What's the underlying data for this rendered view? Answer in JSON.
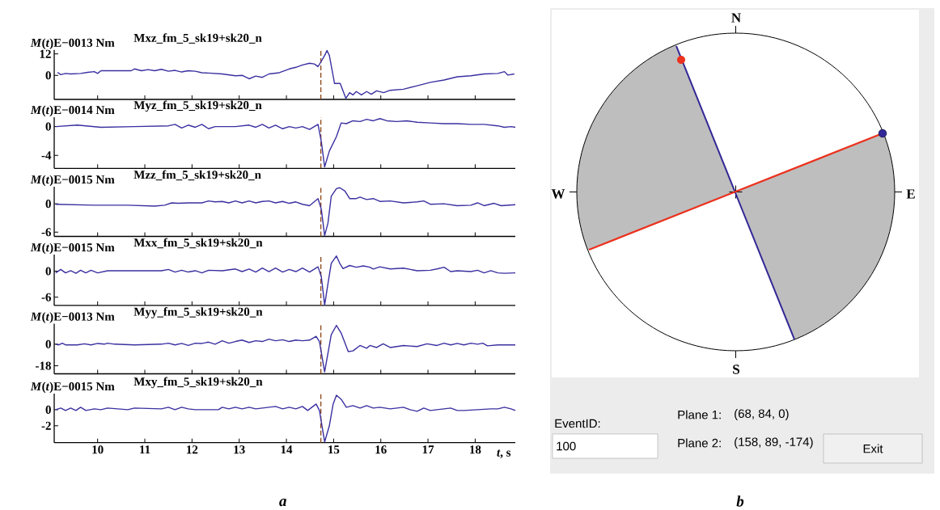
{
  "chart_data": [
    {
      "type": "line",
      "title": "Mxz_fm_5_sk19+sk20_n",
      "ylabel": "*M*(*t*)E−0013 Nm",
      "color": "#3a30a0",
      "xlim": [
        9.08,
        18.85
      ],
      "ylim": [
        -13.4,
        14.2
      ],
      "xticks": [
        10,
        11,
        12,
        13,
        14,
        15,
        16,
        17,
        18
      ],
      "yticks": [
        0,
        12
      ],
      "tick_labels": "y",
      "ref_lines": [
        {
          "axis": "x",
          "value": 14.73,
          "color": "#8b4513",
          "line_style": "dashed"
        }
      ],
      "x": [
        9.15,
        9.22,
        9.32,
        9.43,
        9.64,
        9.79,
        9.93,
        10.0,
        10.07,
        10.21,
        10.71,
        10.78,
        10.93,
        11.07,
        11.21,
        11.35,
        11.5,
        11.64,
        11.78,
        11.92,
        12.07,
        12.21,
        12.35,
        12.64,
        12.92,
        13.07,
        13.21,
        13.35,
        13.49,
        13.63,
        13.85,
        14.06,
        14.2,
        14.34,
        14.49,
        14.59,
        14.67,
        14.74,
        14.81,
        14.86,
        14.91,
        15.02,
        15.14,
        15.26,
        15.34,
        15.41,
        15.48,
        15.59,
        15.7,
        15.8,
        15.91,
        16.06,
        16.2,
        16.48,
        16.77,
        17.05,
        17.34,
        17.62,
        17.91,
        18.19,
        18.48,
        18.62,
        18.69,
        18.83
      ],
      "values": [
        1.7,
        0.4,
        1.1,
        0.8,
        1.1,
        1.7,
        2.1,
        1.1,
        2.6,
        2.6,
        2.6,
        3.6,
        2.6,
        3.2,
        2.6,
        3.4,
        2.3,
        2.8,
        1.9,
        2.6,
        2.3,
        1.5,
        1.3,
        0.8,
        -0.2,
        0.0,
        -1.9,
        -0.4,
        -1.1,
        0.8,
        1.5,
        3.6,
        4.5,
        5.8,
        6.8,
        6.4,
        4.9,
        7.9,
        11.1,
        13.9,
        11.1,
        -4.5,
        -4.5,
        -12.8,
        -9.6,
        -10.9,
        -9.0,
        -10.9,
        -9.0,
        -10.5,
        -8.6,
        -9.6,
        -8.3,
        -7.7,
        -5.8,
        -3.9,
        -2.6,
        -0.8,
        -0.2,
        0.8,
        1.1,
        2.1,
        0.2,
        0.8
      ]
    },
    {
      "type": "line",
      "title": "Myz_fm_5_sk19+sk20_n",
      "ylabel": "*M*(*t*)E−0014 Nm",
      "color": "#3a30a0",
      "xlim": [
        9.08,
        18.85
      ],
      "ylim": [
        -5.8,
        1.3
      ],
      "xticks": [
        10,
        11,
        12,
        13,
        14,
        15,
        16,
        17,
        18
      ],
      "yticks": [
        -4,
        0
      ],
      "tick_labels": "y",
      "ref_lines": [
        {
          "axis": "x",
          "value": 14.73,
          "color": "#8b4513",
          "line_style": "dashed"
        }
      ],
      "x": [
        9.11,
        9.57,
        10.07,
        10.78,
        11.5,
        11.64,
        11.78,
        11.92,
        12.07,
        12.21,
        12.35,
        12.49,
        12.92,
        13.21,
        13.35,
        13.49,
        13.63,
        13.77,
        13.92,
        14.06,
        14.2,
        14.34,
        14.49,
        14.67,
        14.74,
        14.81,
        14.91,
        15.06,
        15.16,
        15.27,
        15.41,
        15.56,
        15.7,
        15.84,
        15.98,
        16.13,
        16.34,
        16.55,
        16.77,
        17.05,
        17.34,
        17.62,
        17.91,
        18.19,
        18.48,
        18.62,
        18.76,
        18.85
      ],
      "values": [
        0.0,
        0.2,
        -0.1,
        0.0,
        0.1,
        0.3,
        -0.2,
        0.2,
        -0.1,
        0.3,
        -0.3,
        0.0,
        0.0,
        0.2,
        -0.1,
        0.3,
        -0.2,
        0.2,
        -0.3,
        0.0,
        -0.2,
        0.0,
        -0.4,
        0.3,
        -2.1,
        -5.6,
        -3.4,
        -1.4,
        0.5,
        0.4,
        0.8,
        0.7,
        1.0,
        0.8,
        1.1,
        0.8,
        0.7,
        0.8,
        0.6,
        0.5,
        0.4,
        0.4,
        0.3,
        0.3,
        0.1,
        -0.1,
        0.0,
        -0.1
      ]
    },
    {
      "type": "line",
      "title": "Mzz_fm_5_sk19+sk20_n",
      "ylabel": "*M*(*t*)E−0015 Nm",
      "color": "#3a30a0",
      "xlim": [
        9.08,
        18.85
      ],
      "ylim": [
        -6.9,
        3.6
      ],
      "xticks": [
        10,
        11,
        12,
        13,
        14,
        15,
        16,
        17,
        18
      ],
      "yticks": [
        -6,
        0
      ],
      "tick_labels": "y",
      "ref_lines": [
        {
          "axis": "x",
          "value": 14.73,
          "color": "#8b4513",
          "line_style": "dashed"
        }
      ],
      "x": [
        9.11,
        9.93,
        10.64,
        11.21,
        11.42,
        11.57,
        11.71,
        11.92,
        12.21,
        12.35,
        12.49,
        12.64,
        12.78,
        12.92,
        13.06,
        13.21,
        13.35,
        13.49,
        13.63,
        13.77,
        13.92,
        14.06,
        14.2,
        14.34,
        14.49,
        14.67,
        14.74,
        14.81,
        14.88,
        14.95,
        15.06,
        15.13,
        15.24,
        15.34,
        15.48,
        15.56,
        15.7,
        15.84,
        15.98,
        16.2,
        16.48,
        16.77,
        16.91,
        17.05,
        17.34,
        17.62,
        17.91,
        18.05,
        18.19,
        18.4,
        18.55,
        18.85
      ],
      "values": [
        -0.1,
        -0.3,
        -0.3,
        -0.5,
        -0.3,
        0.2,
        0.1,
        0.2,
        0.2,
        0.6,
        0.4,
        0.5,
        0.2,
        0.6,
        0.2,
        0.6,
        0.2,
        0.5,
        0.6,
        0.2,
        0.5,
        0.1,
        0.4,
        -0.1,
        -0.4,
        1.1,
        -1.2,
        -6.7,
        -4.1,
        1.6,
        3.2,
        3.4,
        2.7,
        1.1,
        1.1,
        1.4,
        0.9,
        1.1,
        0.5,
        0.6,
        0.2,
        0.4,
        0.6,
        -0.1,
        0.0,
        -0.4,
        -0.3,
        0.2,
        -0.4,
        0.1,
        -0.4,
        -0.2
      ]
    },
    {
      "type": "line",
      "title": "Mxx_fm_5_sk19+sk20_n",
      "ylabel": "*M*(*t*)E−0015 Nm",
      "color": "#3a30a0",
      "xlim": [
        9.08,
        18.85
      ],
      "ylim": [
        -7.9,
        3.8
      ],
      "xticks": [
        10,
        11,
        12,
        13,
        14,
        15,
        16,
        17,
        18
      ],
      "yticks": [
        -6,
        0
      ],
      "tick_labels": "y",
      "ref_lines": [
        {
          "axis": "x",
          "value": 14.73,
          "color": "#8b4513",
          "line_style": "dashed"
        }
      ],
      "x": [
        9.11,
        9.22,
        9.32,
        9.43,
        9.54,
        9.64,
        9.75,
        9.86,
        10.0,
        10.21,
        10.78,
        11.35,
        11.5,
        11.64,
        11.78,
        11.92,
        12.07,
        12.21,
        12.35,
        12.64,
        12.92,
        13.06,
        13.21,
        13.35,
        13.49,
        13.63,
        13.77,
        13.92,
        14.06,
        14.2,
        14.34,
        14.49,
        14.67,
        14.74,
        14.81,
        14.88,
        14.95,
        15.06,
        15.13,
        15.2,
        15.34,
        15.48,
        15.63,
        15.77,
        15.84,
        15.98,
        16.2,
        16.48,
        16.77,
        17.05,
        17.19,
        17.34,
        17.48,
        17.62,
        17.91,
        18.05,
        18.19,
        18.33,
        18.48,
        18.62,
        18.85
      ],
      "values": [
        -0.4,
        0.4,
        -0.4,
        0.1,
        -0.5,
        0.2,
        -0.4,
        0.2,
        -0.4,
        0.1,
        0.1,
        0.1,
        0.4,
        -0.2,
        0.2,
        -0.2,
        0.1,
        -0.4,
        0.2,
        0.1,
        0.5,
        -0.1,
        0.5,
        -0.2,
        0.7,
        -0.1,
        0.7,
        -0.2,
        0.4,
        -0.1,
        0.7,
        -0.2,
        1.0,
        -1.3,
        -7.8,
        -2.9,
        1.8,
        3.5,
        1.8,
        0.6,
        1.3,
        0.9,
        1.2,
        0.9,
        0.5,
        1.0,
        0.5,
        0.7,
        0.1,
        0.2,
        0.5,
        0.9,
        -0.1,
        0.1,
        -0.1,
        0.2,
        -0.4,
        0.1,
        -0.4,
        -0.5,
        -0.4
      ]
    },
    {
      "type": "line",
      "title": "Myy_fm_5_sk19+sk20_n",
      "ylabel": "*M*(*t*)E−0013 Nm",
      "color": "#3a30a0",
      "xlim": [
        9.08,
        18.85
      ],
      "ylim": [
        -24.7,
        17
      ],
      "xticks": [
        10,
        11,
        12,
        13,
        14,
        15,
        16,
        17,
        18
      ],
      "yticks": [
        -18,
        0
      ],
      "tick_labels": "y",
      "ref_lines": [
        {
          "axis": "x",
          "value": 14.73,
          "color": "#8b4513",
          "line_style": "dashed"
        }
      ],
      "x": [
        9.11,
        9.18,
        9.25,
        9.32,
        9.57,
        9.72,
        9.86,
        10.0,
        10.14,
        10.21,
        10.36,
        10.78,
        11.35,
        11.5,
        11.64,
        11.78,
        11.92,
        12.07,
        12.21,
        12.35,
        12.49,
        12.64,
        12.78,
        12.92,
        13.06,
        13.21,
        13.35,
        13.49,
        13.63,
        13.77,
        13.92,
        14.06,
        14.2,
        14.34,
        14.49,
        14.63,
        14.7,
        14.81,
        14.95,
        15.06,
        15.16,
        15.31,
        15.41,
        15.56,
        15.7,
        15.77,
        15.91,
        16.05,
        16.2,
        16.48,
        16.77,
        16.98,
        17.19,
        17.34,
        17.48,
        17.62,
        17.76,
        17.91,
        18.05,
        18.16,
        18.26,
        18.48,
        18.85
      ],
      "values": [
        0.0,
        -0.6,
        0.8,
        -0.6,
        -0.6,
        0.3,
        -0.6,
        0.6,
        0.0,
        0.8,
        0.0,
        -0.6,
        0.0,
        0.8,
        -0.6,
        0.6,
        -1.1,
        0.8,
        0.6,
        1.7,
        0.0,
        2.8,
        0.8,
        2.2,
        3.4,
        1.4,
        2.8,
        2.2,
        4.2,
        2.8,
        3.7,
        2.2,
        3.4,
        2.8,
        3.4,
        6.5,
        2.2,
        -23.1,
        7.9,
        15.7,
        9.3,
        -6.2,
        -5.6,
        -1.1,
        -3.4,
        -1.1,
        -2.8,
        0.3,
        -2.8,
        -1.1,
        -2.0,
        0.3,
        -1.1,
        0.8,
        -0.6,
        0.6,
        -0.6,
        0.8,
        0.0,
        0.8,
        -1.4,
        -0.6,
        -0.6
      ]
    },
    {
      "type": "line",
      "title": "Mxy_fm_5_sk19+sk20_n",
      "ylabel": "*M*(*t*)E−0015 Nm",
      "xlabel": "*t*, s",
      "color": "#3a30a0",
      "xlim": [
        9.08,
        18.85
      ],
      "ylim": [
        -4.1,
        2.0
      ],
      "xticks": [
        10,
        11,
        12,
        13,
        14,
        15,
        16,
        17,
        18
      ],
      "yticks": [
        -2,
        0
      ],
      "ref_lines": [
        {
          "axis": "x",
          "value": 14.73,
          "color": "#8b4513",
          "line_style": "dashed"
        }
      ],
      "annotations": [
        "a"
      ],
      "x": [
        9.11,
        9.22,
        9.32,
        9.43,
        9.54,
        9.64,
        9.75,
        9.93,
        10.07,
        10.21,
        10.64,
        10.78,
        11.35,
        11.5,
        11.64,
        11.78,
        11.92,
        12.07,
        12.56,
        12.64,
        12.78,
        12.92,
        13.06,
        13.21,
        13.35,
        13.63,
        13.77,
        13.92,
        14.06,
        14.2,
        14.34,
        14.45,
        14.63,
        14.7,
        14.81,
        14.91,
        14.99,
        15.06,
        15.16,
        15.27,
        15.41,
        15.56,
        15.7,
        15.84,
        15.98,
        16.2,
        16.48,
        16.62,
        16.77,
        16.91,
        17.05,
        17.19,
        17.34,
        17.48,
        17.62,
        17.76,
        18.05,
        18.33,
        18.48,
        18.62,
        18.76,
        18.85
      ],
      "values": [
        0.0,
        0.2,
        -0.1,
        0.2,
        -0.1,
        0.3,
        -0.1,
        0.1,
        0.0,
        0.2,
        0.0,
        0.2,
        0.1,
        0.3,
        0.0,
        0.3,
        0.1,
        0.0,
        0.0,
        0.3,
        0.1,
        0.3,
        0.1,
        0.3,
        0.1,
        0.3,
        0.4,
        0.1,
        0.3,
        0.1,
        0.4,
        -0.1,
        0.7,
        -0.1,
        -4.0,
        -2.0,
        0.7,
        1.8,
        1.3,
        0.3,
        0.5,
        0.2,
        0.5,
        0.2,
        0.3,
        0.1,
        0.3,
        0.0,
        -0.2,
        0.2,
        -0.1,
        0.0,
        0.1,
        0.2,
        -0.1,
        -0.1,
        0.0,
        0.1,
        0.1,
        0.3,
        0.1,
        -0.1
      ]
    },
    {
      "type": "other",
      "annotations": [
        "N",
        "S",
        "W",
        "E",
        "EventID:",
        "100",
        "Plane 1:",
        "(68, 84, 0)",
        "Plane 2:",
        "(158, 89, -174)",
        "Exit",
        "b"
      ]
    }
  ]
}
